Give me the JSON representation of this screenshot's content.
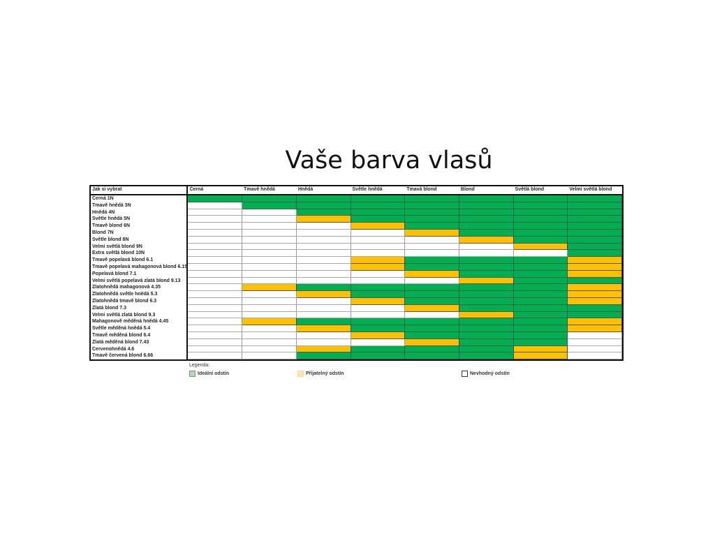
{
  "title": "Vaše barva vlasů",
  "table": {
    "corner": "Jak si vybrat",
    "columns": [
      "Černá",
      "Tmavě hnědá",
      "Hnědá",
      "Světle hnědá",
      "Tmavá blond",
      "Blond",
      "Světlá blond",
      "Velmi světlá blond"
    ],
    "rows": [
      {
        "label": "Černá 1N",
        "cells": "GGGGGGGG"
      },
      {
        "label": "Tmavě hnědá 3N",
        "cells": "WGGGGGGG"
      },
      {
        "label": "Hnědá 4N",
        "cells": "WWGGGGGG"
      },
      {
        "label": "Světle hnědá 5N",
        "cells": "WWYGGGGG"
      },
      {
        "label": "Tmavě blond 6N",
        "cells": "WWWYGGGG"
      },
      {
        "label": "Blond 7N",
        "cells": "WWWWYGGG"
      },
      {
        "label": "Světle blond 8N",
        "cells": "WWWWWYGG"
      },
      {
        "label": "Velmi světlá blond 9N",
        "cells": "WWWWWWYG"
      },
      {
        "label": "Extra světlá blond 10N",
        "cells": "WWWWWWWG"
      },
      {
        "label": "Tmavě popelavá blond 6.1",
        "cells": "WWWYGGGY"
      },
      {
        "label": "Tmavě popelavá mahagonová blond 6.15",
        "cells": "WWWYGGGY"
      },
      {
        "label": "Popelavá blond 7.1",
        "cells": "WWWWYGGY"
      },
      {
        "label": "Velmi světlá popelavá zlatá blond 9.13",
        "cells": "WWWWWYGG"
      },
      {
        "label": "Zlatohnědá mahagonová 4.35",
        "cells": "WYGGGGGY"
      },
      {
        "label": "Zlatohnědá světle hnědá 5.3",
        "cells": "WWYGGGGY"
      },
      {
        "label": "Zlatohnědá tmavě blond 6.3",
        "cells": "WWWYGGGY"
      },
      {
        "label": "Zlatá blond 7.3",
        "cells": "WWWWYGGG"
      },
      {
        "label": "Velmi světlá zlatá blond 9.3",
        "cells": "WWWWWYGG"
      },
      {
        "label": "Mahagonově měděná hnědá 4.45",
        "cells": "WYGGGGGY"
      },
      {
        "label": "Světle měděná hnědá 5.4",
        "cells": "WWYGGGGY"
      },
      {
        "label": "Tmavě měděná blond 6.4",
        "cells": "WWWYGGGW"
      },
      {
        "label": "Zlatá měděná blond 7.43",
        "cells": "WWWWYGGW"
      },
      {
        "label": "Červenohnědá 4.6",
        "cells": "WWYGGGYW"
      },
      {
        "label": "Tmavě červená blond 6.66",
        "cells": "WWGGGGYW"
      }
    ]
  },
  "legend": {
    "title": "Legenda:",
    "items": [
      {
        "code": "G",
        "label": "Ideální odstín",
        "color": "#a9e0b8"
      },
      {
        "code": "Y",
        "label": "Přijatelný odstín",
        "color": "#ffe6a8"
      },
      {
        "code": "W",
        "label": "Nevhodný odstín",
        "color": "#ffffff"
      }
    ]
  },
  "colors": {
    "G": "#00b050",
    "Y": "#ffc000",
    "W": "#ffffff"
  }
}
